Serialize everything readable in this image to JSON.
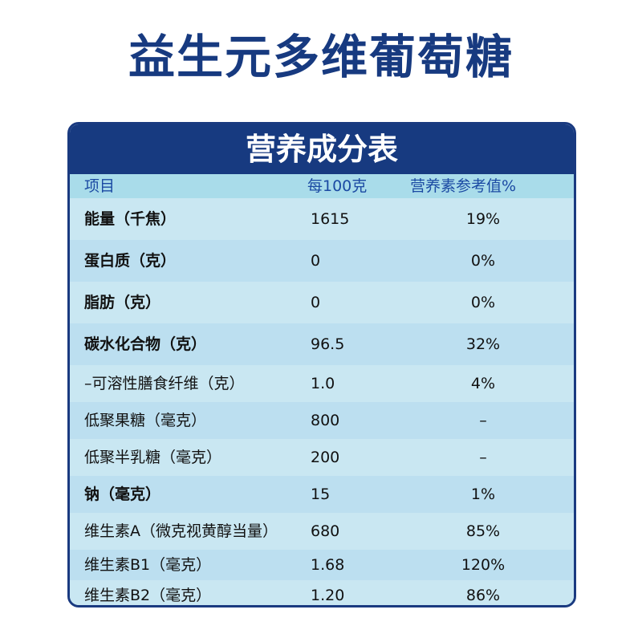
{
  "title": "益生元多维葡萄糖",
  "table": {
    "heading": "营养成分表",
    "columns": [
      "项目",
      "每100克",
      "营养素参考值%"
    ],
    "rows": [
      {
        "item": "能量（千焦）",
        "per100g": "1615",
        "nrv": "19%",
        "bold": true
      },
      {
        "item": "蛋白质（克）",
        "per100g": "0",
        "nrv": "0%",
        "bold": true
      },
      {
        "item": "脂肪（克）",
        "per100g": "0",
        "nrv": "0%",
        "bold": true
      },
      {
        "item": "碳水化合物（克）",
        "per100g": "96.5",
        "nrv": "32%",
        "bold": true
      },
      {
        "item": "–可溶性膳食纤维（克）",
        "per100g": "1.0",
        "nrv": "4%",
        "bold": false
      },
      {
        "item": "低聚果糖（毫克）",
        "per100g": "800",
        "nrv": "–",
        "bold": false
      },
      {
        "item": "低聚半乳糖（毫克）",
        "per100g": "200",
        "nrv": "–",
        "bold": false
      },
      {
        "item": "钠（毫克）",
        "per100g": "15",
        "nrv": "1%",
        "bold": true
      },
      {
        "item": "维生素A（微克视黄醇当量）",
        "per100g": "680",
        "nrv": "85%",
        "bold": false
      },
      {
        "item": "维生素B1（毫克）",
        "per100g": "1.68",
        "nrv": "120%",
        "bold": false
      },
      {
        "item": "维生素B2（毫克）",
        "per100g": "1.20",
        "nrv": "86%",
        "bold": false
      }
    ]
  }
}
